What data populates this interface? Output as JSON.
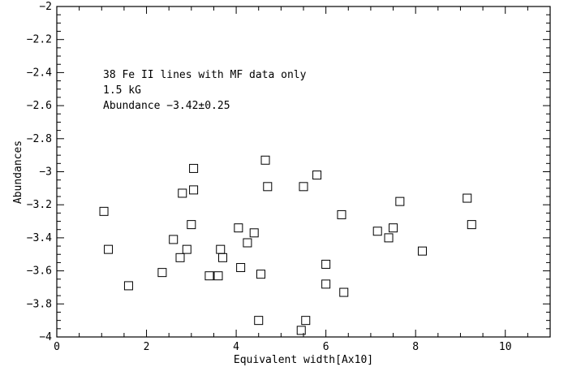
{
  "chart_data": {
    "type": "scatter",
    "title": "",
    "xlabel": "Equivalent width[Ax10]",
    "ylabel": "Abundances",
    "xlim": [
      0,
      11
    ],
    "ylim": [
      -4,
      -2
    ],
    "xticks": [
      0,
      2,
      4,
      6,
      8,
      10
    ],
    "xtick_labels": [
      "0",
      "2",
      "4",
      "6",
      "8",
      "10"
    ],
    "yticks": [
      -4,
      -3.8,
      -3.6,
      -3.4,
      -3.2,
      -3,
      -2.8,
      -2.6,
      -2.4,
      -2.2,
      -2
    ],
    "ytick_labels": [
      "−4",
      "−3.8",
      "−3.6",
      "−3.4",
      "−3.2",
      "−3",
      "−2.8",
      "−2.6",
      "−2.4",
      "−2.2",
      "−2"
    ],
    "grid": false,
    "marker": "open-square",
    "annotations": [
      "38 Fe II lines with MF data only",
      "1.5 kG",
      "Abundance −3.42±0.25"
    ],
    "points": [
      {
        "x": 1.05,
        "y": -3.24
      },
      {
        "x": 1.15,
        "y": -3.47
      },
      {
        "x": 1.6,
        "y": -3.69
      },
      {
        "x": 2.35,
        "y": -3.61
      },
      {
        "x": 2.6,
        "y": -3.41
      },
      {
        "x": 2.75,
        "y": -3.52
      },
      {
        "x": 2.8,
        "y": -3.13
      },
      {
        "x": 2.9,
        "y": -3.47
      },
      {
        "x": 3.0,
        "y": -3.32
      },
      {
        "x": 3.05,
        "y": -2.98
      },
      {
        "x": 3.05,
        "y": -3.11
      },
      {
        "x": 3.4,
        "y": -3.63
      },
      {
        "x": 3.6,
        "y": -3.63
      },
      {
        "x": 3.65,
        "y": -3.47
      },
      {
        "x": 3.7,
        "y": -3.52
      },
      {
        "x": 4.05,
        "y": -3.34
      },
      {
        "x": 4.1,
        "y": -3.58
      },
      {
        "x": 4.25,
        "y": -3.43
      },
      {
        "x": 4.4,
        "y": -3.37
      },
      {
        "x": 4.5,
        "y": -3.9
      },
      {
        "x": 4.55,
        "y": -3.62
      },
      {
        "x": 4.65,
        "y": -2.93
      },
      {
        "x": 4.7,
        "y": -3.09
      },
      {
        "x": 5.45,
        "y": -3.96
      },
      {
        "x": 5.5,
        "y": -3.09
      },
      {
        "x": 5.55,
        "y": -3.9
      },
      {
        "x": 5.8,
        "y": -3.02
      },
      {
        "x": 6.0,
        "y": -3.56
      },
      {
        "x": 6.0,
        "y": -3.68
      },
      {
        "x": 6.35,
        "y": -3.26
      },
      {
        "x": 6.4,
        "y": -3.73
      },
      {
        "x": 7.15,
        "y": -3.36
      },
      {
        "x": 7.4,
        "y": -3.4
      },
      {
        "x": 7.5,
        "y": -3.34
      },
      {
        "x": 7.65,
        "y": -3.18
      },
      {
        "x": 8.15,
        "y": -3.48
      },
      {
        "x": 9.15,
        "y": -3.16
      },
      {
        "x": 9.25,
        "y": -3.32
      }
    ]
  }
}
